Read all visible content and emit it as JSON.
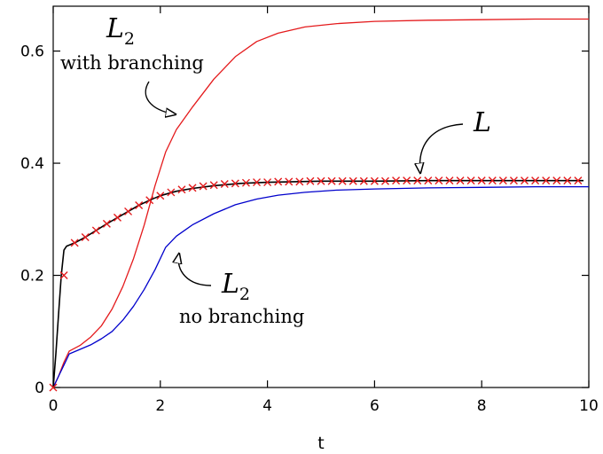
{
  "chart_data": {
    "type": "line",
    "title": "",
    "xlabel": "t",
    "ylabel": "",
    "xlim": [
      0,
      10
    ],
    "ylim": [
      0,
      0.68
    ],
    "xticks": [
      0,
      2,
      4,
      6,
      8,
      10
    ],
    "yticks": [
      0,
      0.2,
      0.4,
      0.6
    ],
    "xtick_labels": [
      "0",
      "2",
      "4",
      "6",
      "8",
      "10"
    ],
    "ytick_labels": [
      "0",
      "0.2",
      "0.4",
      "0.6"
    ],
    "grid": false,
    "series": [
      {
        "color": "#e41a1c",
        "x": [
          0,
          0.1,
          0.2,
          0.3,
          0.5,
          0.7,
          0.9,
          1.1,
          1.3,
          1.5,
          1.7,
          1.9,
          2.1,
          2.3,
          2.6,
          3.0,
          3.4,
          3.8,
          4.2,
          4.7,
          5.3,
          6.0,
          7.0,
          8.0,
          9.0,
          10.0
        ],
        "y": [
          0,
          0.02,
          0.045,
          0.065,
          0.075,
          0.09,
          0.11,
          0.14,
          0.18,
          0.23,
          0.29,
          0.36,
          0.42,
          0.46,
          0.5,
          0.55,
          0.59,
          0.617,
          0.632,
          0.643,
          0.649,
          0.653,
          0.655,
          0.656,
          0.657,
          0.657
        ]
      },
      {
        "color": "#0000cc",
        "x": [
          0,
          0.1,
          0.2,
          0.3,
          0.5,
          0.7,
          0.9,
          1.1,
          1.3,
          1.5,
          1.7,
          1.9,
          2.1,
          2.3,
          2.6,
          3.0,
          3.4,
          3.8,
          4.2,
          4.7,
          5.3,
          6.0,
          7.0,
          8.0,
          9.0,
          10.0
        ],
        "y": [
          0,
          0.02,
          0.04,
          0.06,
          0.068,
          0.076,
          0.087,
          0.1,
          0.12,
          0.145,
          0.175,
          0.21,
          0.25,
          0.27,
          0.29,
          0.31,
          0.326,
          0.336,
          0.343,
          0.348,
          0.352,
          0.354,
          0.356,
          0.357,
          0.358,
          0.358
        ]
      },
      {
        "color": "#000000",
        "x": [
          0,
          0.05,
          0.1,
          0.15,
          0.2,
          0.25,
          0.4,
          0.6,
          0.8,
          1.0,
          1.2,
          1.4,
          1.6,
          1.8,
          2.0,
          2.3,
          2.6,
          3.0,
          3.5,
          4.0,
          5.0,
          6.0,
          7.0,
          8.0,
          9.0,
          9.9
        ],
        "y": [
          0,
          0.06,
          0.13,
          0.2,
          0.245,
          0.252,
          0.258,
          0.268,
          0.28,
          0.292,
          0.303,
          0.314,
          0.325,
          0.334,
          0.342,
          0.35,
          0.355,
          0.36,
          0.364,
          0.366,
          0.368,
          0.368,
          0.369,
          0.369,
          0.369,
          0.369
        ]
      },
      {
        "color": "#e41a1c",
        "marker": "x",
        "x": [
          0,
          0.2,
          0.4,
          0.6,
          0.8,
          1.0,
          1.2,
          1.4,
          1.6,
          1.8,
          2.0,
          2.2,
          2.4,
          2.6,
          2.8,
          3.0,
          3.2,
          3.4,
          3.6,
          3.8,
          4.0,
          4.2,
          4.4,
          4.6,
          4.8,
          5.0,
          5.2,
          5.4,
          5.6,
          5.8,
          6.0,
          6.2,
          6.4,
          6.6,
          6.8,
          7.0,
          7.2,
          7.4,
          7.6,
          7.8,
          8.0,
          8.2,
          8.4,
          8.6,
          8.8,
          9.0,
          9.2,
          9.4,
          9.6,
          9.8
        ],
        "y": [
          0,
          0.2,
          0.258,
          0.268,
          0.28,
          0.292,
          0.303,
          0.314,
          0.325,
          0.334,
          0.342,
          0.348,
          0.353,
          0.356,
          0.359,
          0.361,
          0.363,
          0.364,
          0.365,
          0.366,
          0.366,
          0.367,
          0.367,
          0.367,
          0.368,
          0.368,
          0.368,
          0.368,
          0.368,
          0.368,
          0.368,
          0.368,
          0.369,
          0.369,
          0.369,
          0.369,
          0.369,
          0.369,
          0.369,
          0.369,
          0.369,
          0.369,
          0.369,
          0.369,
          0.369,
          0.369,
          0.369,
          0.369,
          0.369,
          0.369
        ]
      }
    ],
    "annotations": [
      {
        "math": "L",
        "sub": "2",
        "text": "with branching"
      },
      {
        "math": "L",
        "sub": "",
        "text": ""
      },
      {
        "math": "L",
        "sub": "2",
        "text": "no branching"
      }
    ]
  }
}
